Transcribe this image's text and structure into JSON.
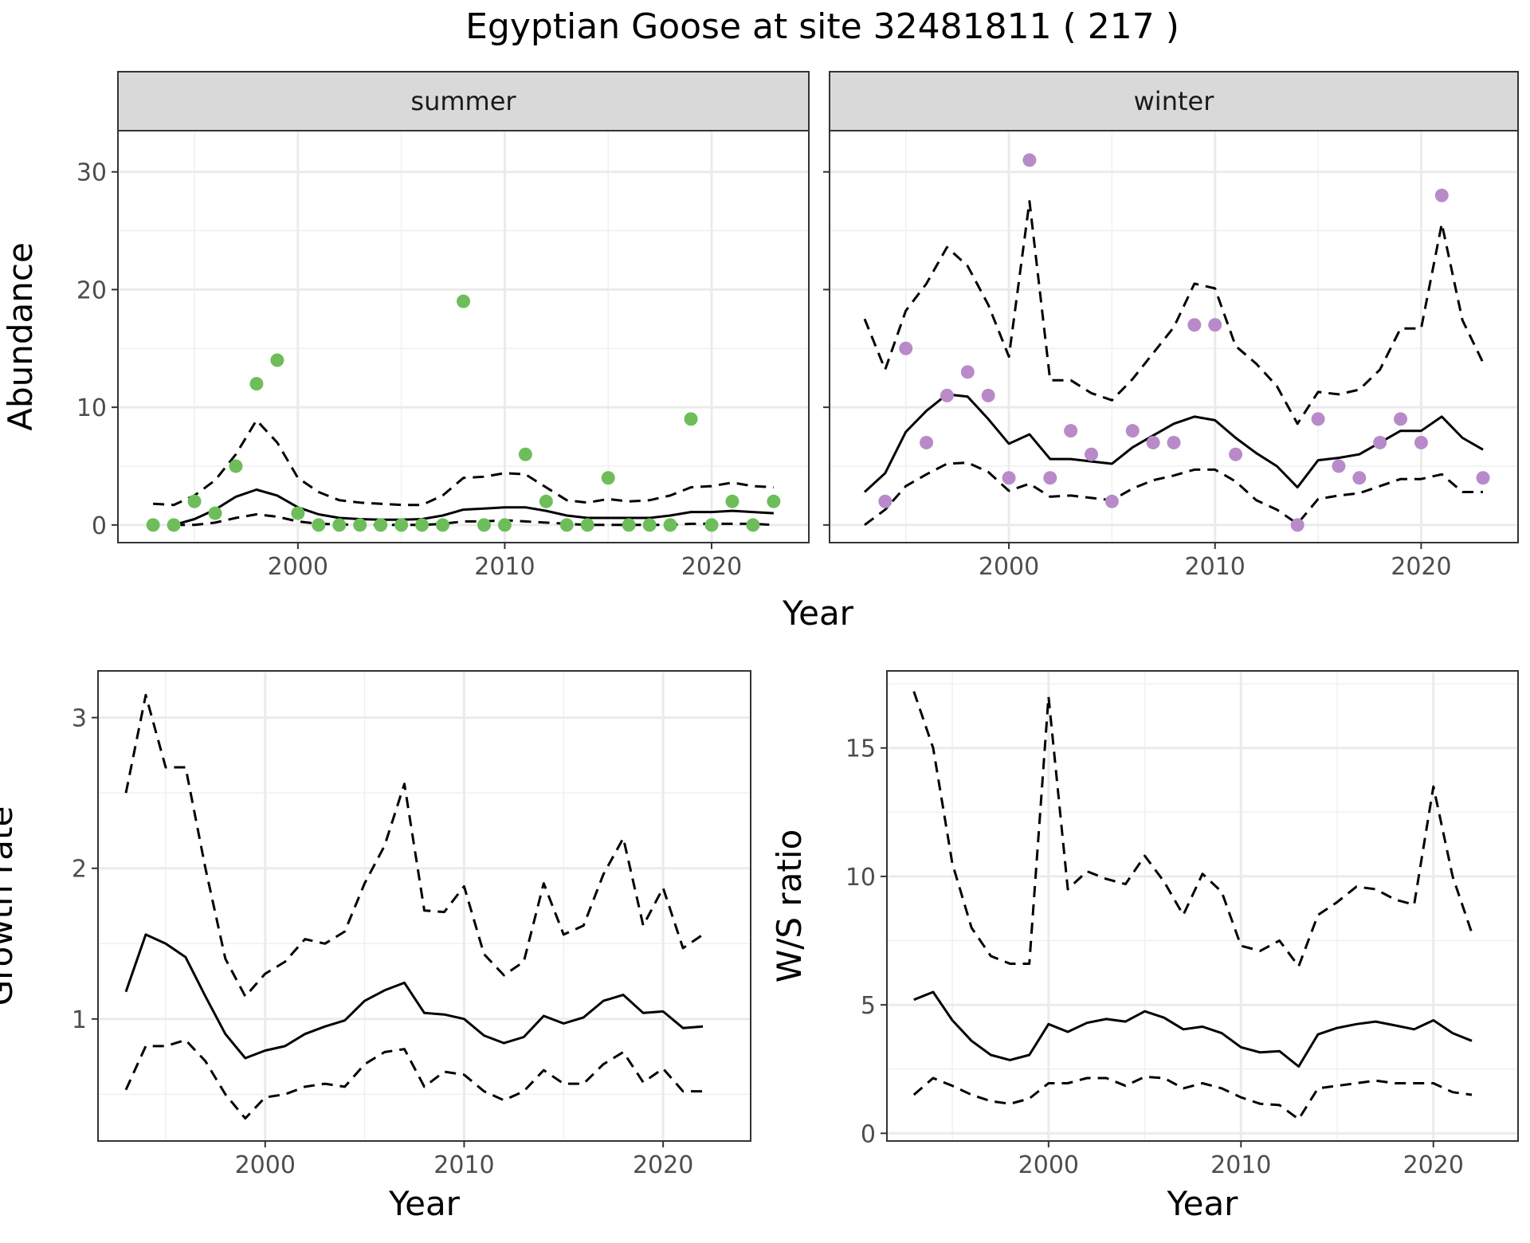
{
  "title": "Egyptian Goose at site 32481811 ( 217 )",
  "colors": {
    "summer": "#6dbe5a",
    "winter": "#b98ac9"
  },
  "chart_data": [
    {
      "type": "scatter",
      "panel": "summer",
      "strip": "summer",
      "xlabel": "Year",
      "ylabel": "Abundance",
      "xlim": [
        1991.3,
        2024.7
      ],
      "ylim": [
        -1.5,
        33.5
      ],
      "xticks": [
        2000,
        2010,
        2020
      ],
      "xtick_labels": [
        "2000",
        "2010",
        "2020"
      ],
      "yticks": [
        0,
        10,
        20,
        30
      ],
      "ytick_labels": [
        "0",
        "10",
        "20",
        "30"
      ],
      "points": {
        "x": [
          1993,
          1994,
          1995,
          1996,
          1997,
          1998,
          1999,
          2000,
          2001,
          2002,
          2003,
          2004,
          2005,
          2006,
          2007,
          2008,
          2009,
          2010,
          2011,
          2012,
          2013,
          2014,
          2015,
          2016,
          2017,
          2018,
          2019,
          2020,
          2021,
          2022,
          2023
        ],
        "y": [
          0,
          0,
          2,
          1,
          5,
          12,
          14,
          1,
          0,
          0,
          0,
          0,
          0,
          0,
          0,
          19,
          0,
          0,
          6,
          2,
          0,
          0,
          4,
          0,
          0,
          0,
          9,
          0,
          2,
          0,
          2
        ]
      },
      "series": [
        {
          "role": "mean",
          "x": [
            1994,
            1995,
            1996,
            1997,
            1998,
            1999,
            2000,
            2001,
            2002,
            2003,
            2004,
            2005,
            2006,
            2007,
            2008,
            2009,
            2010,
            2011,
            2012,
            2013,
            2014,
            2015,
            2016,
            2017,
            2018,
            2019,
            2020,
            2021,
            2022,
            2023
          ],
          "y": [
            0,
            0.5,
            1.3,
            2.4,
            3,
            2.5,
            1.5,
            0.9,
            0.6,
            0.5,
            0.45,
            0.45,
            0.5,
            0.8,
            1.3,
            1.4,
            1.5,
            1.5,
            1.2,
            0.8,
            0.6,
            0.6,
            0.6,
            0.6,
            0.8,
            1.1,
            1.1,
            1.2,
            1.1,
            1
          ]
        },
        {
          "role": "lower",
          "x": [
            1994,
            1995,
            1996,
            1997,
            1998,
            1999,
            2000,
            2001,
            2002,
            2003,
            2004,
            2005,
            2006,
            2007,
            2008,
            2009,
            2010,
            2011,
            2012,
            2013,
            2014,
            2015,
            2016,
            2017,
            2018,
            2019,
            2020,
            2021,
            2022,
            2023
          ],
          "y": [
            0,
            0,
            0.2,
            0.6,
            0.9,
            0.7,
            0.3,
            0.1,
            0.05,
            0,
            0,
            0,
            0,
            0.1,
            0.3,
            0.3,
            0.4,
            0.3,
            0.2,
            0.1,
            0,
            0,
            0,
            0,
            0,
            0.1,
            0.1,
            0.1,
            0.1,
            0
          ]
        },
        {
          "role": "upper",
          "x": [
            1993,
            1994,
            1995,
            1996,
            1997,
            1998,
            1999,
            2000,
            2001,
            2002,
            2003,
            2004,
            2005,
            2006,
            2007,
            2008,
            2009,
            2010,
            2011,
            2012,
            2013,
            2014,
            2015,
            2016,
            2017,
            2018,
            2019,
            2020,
            2021,
            2022,
            2023
          ],
          "y": [
            1.8,
            1.7,
            2.5,
            3.8,
            6,
            8.9,
            7,
            4,
            2.8,
            2.1,
            1.9,
            1.8,
            1.7,
            1.7,
            2.5,
            4,
            4.1,
            4.4,
            4.3,
            3.2,
            2.1,
            1.9,
            2.2,
            2,
            2.1,
            2.5,
            3.2,
            3.3,
            3.6,
            3.3,
            3.2
          ]
        }
      ]
    },
    {
      "type": "scatter",
      "panel": "winter",
      "strip": "winter",
      "xlim": [
        1991.3,
        2024.7
      ],
      "ylim": [
        -1.5,
        33.5
      ],
      "xticks": [
        2000,
        2010,
        2020
      ],
      "xtick_labels": [
        "2000",
        "2010",
        "2020"
      ],
      "yticks": [
        0,
        10,
        20,
        30
      ],
      "points": {
        "x": [
          1994,
          1995,
          1996,
          1997,
          1998,
          1999,
          2000,
          2001,
          2002,
          2003,
          2004,
          2005,
          2006,
          2007,
          2008,
          2009,
          2010,
          2011,
          2014,
          2015,
          2016,
          2017,
          2018,
          2019,
          2020,
          2021,
          2023
        ],
        "y": [
          2,
          15,
          7,
          11,
          13,
          11,
          4,
          31,
          4,
          8,
          6,
          2,
          8,
          7,
          7,
          17,
          17,
          6,
          0,
          9,
          5,
          4,
          7,
          9,
          7,
          28,
          4
        ]
      },
      "series": [
        {
          "role": "mean",
          "x": [
            1993,
            1994,
            1995,
            1996,
            1997,
            1998,
            1999,
            2000,
            2001,
            2002,
            2003,
            2004,
            2005,
            2006,
            2007,
            2008,
            2009,
            2010,
            2011,
            2012,
            2013,
            2014,
            2015,
            2016,
            2017,
            2018,
            2019,
            2020,
            2021,
            2022,
            2023
          ],
          "y": [
            2.8,
            4.4,
            7.9,
            9.7,
            11.1,
            10.9,
            9,
            6.9,
            7.7,
            5.6,
            5.6,
            5.4,
            5.2,
            6.6,
            7.6,
            8.6,
            9.2,
            8.9,
            7.4,
            6.1,
            5,
            3.2,
            5.5,
            5.7,
            6,
            7,
            8,
            8,
            9.2,
            7.4,
            6.4
          ]
        },
        {
          "role": "lower",
          "x": [
            1993,
            1994,
            1995,
            1996,
            1997,
            1998,
            1999,
            2000,
            2001,
            2002,
            2003,
            2004,
            2005,
            2006,
            2007,
            2008,
            2009,
            2010,
            2011,
            2012,
            2013,
            2014,
            2015,
            2016,
            2017,
            2018,
            2019,
            2020,
            2021,
            2022,
            2023
          ],
          "y": [
            0,
            1.3,
            3.3,
            4.3,
            5.2,
            5.3,
            4.5,
            2.9,
            3.5,
            2.4,
            2.5,
            2.3,
            2.1,
            3.1,
            3.8,
            4.2,
            4.7,
            4.7,
            3.7,
            2.1,
            1.3,
            0.1,
            2.2,
            2.5,
            2.7,
            3.3,
            3.9,
            3.9,
            4.3,
            2.8,
            2.8
          ]
        },
        {
          "role": "upper",
          "x": [
            1993,
            1994,
            1995,
            1996,
            1997,
            1998,
            1999,
            2000,
            2001,
            2002,
            2003,
            2004,
            2005,
            2006,
            2007,
            2008,
            2009,
            2010,
            2011,
            2012,
            2013,
            2014,
            2015,
            2016,
            2017,
            2018,
            2019,
            2020,
            2021,
            2022,
            2023
          ],
          "y": [
            17.5,
            13.2,
            18.2,
            20.5,
            23.6,
            22,
            18.7,
            14.3,
            27.5,
            12.3,
            12.3,
            11.2,
            10.6,
            12.4,
            14.6,
            16.8,
            20.5,
            20.1,
            15.2,
            13.7,
            11.8,
            8.6,
            11.3,
            11.1,
            11.5,
            13.2,
            16.7,
            16.7,
            25.6,
            17.4,
            13.8
          ]
        }
      ]
    },
    {
      "type": "line",
      "panel": "growth",
      "xlabel": "Year",
      "ylabel": "Growth rate",
      "xlim": [
        1991.6,
        2024.4
      ],
      "ylim": [
        0.19,
        3.31
      ],
      "xticks": [
        2000,
        2010,
        2020
      ],
      "xtick_labels": [
        "2000",
        "2010",
        "2020"
      ],
      "yticks": [
        1,
        2,
        3
      ],
      "ytick_labels": [
        "1",
        "2",
        "3"
      ],
      "series": [
        {
          "role": "mean",
          "x": [
            1993,
            1994,
            1995,
            1996,
            1997,
            1998,
            1999,
            2000,
            2001,
            2002,
            2003,
            2004,
            2005,
            2006,
            2007,
            2008,
            2009,
            2010,
            2011,
            2012,
            2013,
            2014,
            2015,
            2016,
            2017,
            2018,
            2019,
            2020,
            2021,
            2022
          ],
          "y": [
            1.18,
            1.56,
            1.5,
            1.41,
            1.15,
            0.9,
            0.74,
            0.79,
            0.82,
            0.9,
            0.95,
            0.99,
            1.12,
            1.19,
            1.24,
            1.04,
            1.03,
            1,
            0.89,
            0.84,
            0.88,
            1.02,
            0.97,
            1.01,
            1.12,
            1.16,
            1.04,
            1.05,
            0.94,
            0.95
          ]
        },
        {
          "role": "upper",
          "x": [
            1993,
            1994,
            1995,
            1996,
            1997,
            1998,
            1999,
            2000,
            2001,
            2002,
            2003,
            2004,
            2005,
            2006,
            2007,
            2008,
            2009,
            2010,
            2011,
            2012,
            2013,
            2014,
            2015,
            2016,
            2017,
            2018,
            2019,
            2020,
            2021,
            2022
          ],
          "y": [
            2.5,
            3.15,
            2.67,
            2.67,
            2,
            1.4,
            1.15,
            1.3,
            1.38,
            1.53,
            1.5,
            1.58,
            1.9,
            2.15,
            2.56,
            1.72,
            1.71,
            1.88,
            1.43,
            1.29,
            1.38,
            1.9,
            1.56,
            1.62,
            1.96,
            2.2,
            1.62,
            1.87,
            1.47,
            1.56
          ]
        },
        {
          "role": "lower",
          "x": [
            1993,
            1994,
            1995,
            1996,
            1997,
            1998,
            1999,
            2000,
            2001,
            2002,
            2003,
            2004,
            2005,
            2006,
            2007,
            2008,
            2009,
            2010,
            2011,
            2012,
            2013,
            2014,
            2015,
            2016,
            2017,
            2018,
            2019,
            2020,
            2021,
            2022
          ],
          "y": [
            0.53,
            0.82,
            0.82,
            0.86,
            0.72,
            0.5,
            0.34,
            0.48,
            0.5,
            0.55,
            0.57,
            0.55,
            0.7,
            0.78,
            0.8,
            0.55,
            0.65,
            0.63,
            0.52,
            0.46,
            0.52,
            0.66,
            0.57,
            0.57,
            0.7,
            0.78,
            0.58,
            0.67,
            0.52,
            0.52
          ]
        }
      ]
    },
    {
      "type": "line",
      "panel": "ratio",
      "xlabel": "Year",
      "ylabel": "W/S ratio",
      "xlim": [
        1991.6,
        2024.4
      ],
      "ylim": [
        -0.3,
        18
      ],
      "xticks": [
        2000,
        2010,
        2020
      ],
      "xtick_labels": [
        "2000",
        "2010",
        "2020"
      ],
      "yticks": [
        0,
        5,
        10,
        15
      ],
      "ytick_labels": [
        "0",
        "5",
        "10",
        "15"
      ],
      "series": [
        {
          "role": "mean",
          "x": [
            1993,
            1994,
            1995,
            1996,
            1997,
            1998,
            1999,
            2000,
            2001,
            2002,
            2003,
            2004,
            2005,
            2006,
            2007,
            2008,
            2009,
            2010,
            2011,
            2012,
            2013,
            2014,
            2015,
            2016,
            2017,
            2018,
            2019,
            2020,
            2021,
            2022
          ],
          "y": [
            5.2,
            5.5,
            4.4,
            3.6,
            3.05,
            2.85,
            3.05,
            4.25,
            3.95,
            4.3,
            4.45,
            4.35,
            4.75,
            4.5,
            4.05,
            4.15,
            3.9,
            3.35,
            3.15,
            3.2,
            2.6,
            3.85,
            4.1,
            4.25,
            4.35,
            4.2,
            4.05,
            4.4,
            3.9,
            3.6
          ]
        },
        {
          "role": "upper",
          "x": [
            1993,
            1994,
            1995,
            1996,
            1997,
            1998,
            1999,
            2000,
            2001,
            2002,
            2003,
            2004,
            2005,
            2006,
            2007,
            2008,
            2009,
            2010,
            2011,
            2012,
            2013,
            2014,
            2015,
            2016,
            2017,
            2018,
            2019,
            2020,
            2021,
            2022
          ],
          "y": [
            17.2,
            15,
            10.5,
            8,
            6.9,
            6.6,
            6.6,
            17,
            9.5,
            10.2,
            9.9,
            9.7,
            10.8,
            9.8,
            8.5,
            10.1,
            9.4,
            7.3,
            7.1,
            7.5,
            6.5,
            8.5,
            9,
            9.6,
            9.5,
            9.1,
            8.9,
            13.5,
            10,
            7.8
          ]
        },
        {
          "role": "lower",
          "x": [
            1993,
            1994,
            1995,
            1996,
            1997,
            1998,
            1999,
            2000,
            2001,
            2002,
            2003,
            2004,
            2005,
            2006,
            2007,
            2008,
            2009,
            2010,
            2011,
            2012,
            2013,
            2014,
            2015,
            2016,
            2017,
            2018,
            2019,
            2020,
            2021,
            2022
          ],
          "y": [
            1.5,
            2.15,
            1.85,
            1.5,
            1.25,
            1.15,
            1.35,
            1.95,
            1.95,
            2.15,
            2.15,
            1.85,
            2.2,
            2.15,
            1.75,
            1.95,
            1.75,
            1.4,
            1.15,
            1.1,
            0.55,
            1.75,
            1.85,
            1.95,
            2.05,
            1.95,
            1.95,
            1.95,
            1.6,
            1.5
          ]
        }
      ]
    }
  ]
}
